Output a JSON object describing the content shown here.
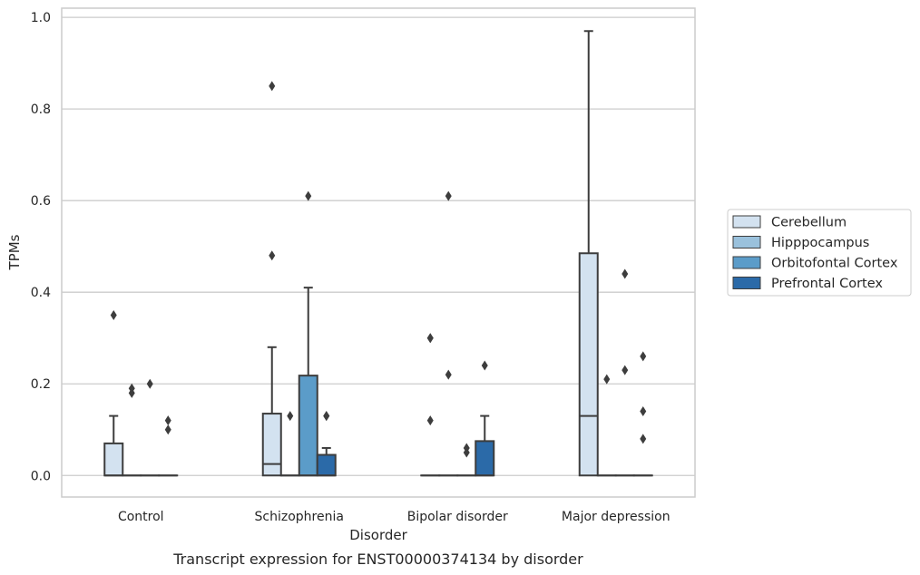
{
  "caption": "Transcript expression for ENST00000374134 by disorder",
  "chart_data": {
    "type": "box",
    "xlabel": "Disorder",
    "ylabel": "TPMs",
    "ylim": [
      -0.047,
      1.02
    ],
    "yticks": [
      "0.0",
      "0.2",
      "0.4",
      "0.6",
      "0.8",
      "1.0"
    ],
    "grid": true,
    "legend_position": "right",
    "categories": [
      "Control",
      "Schizophrenia",
      "Bipolar disorder",
      "Major depression"
    ],
    "series": [
      {
        "name": "Cerebellum",
        "color": "#d3e2f0",
        "boxes": [
          {
            "q1": 0,
            "median": 0,
            "q3": 0.07,
            "whisker_low": 0,
            "whisker_high": 0.13,
            "outliers": [
              0.35
            ]
          },
          {
            "q1": 0,
            "median": 0.025,
            "q3": 0.135,
            "whisker_low": 0,
            "whisker_high": 0.28,
            "outliers": [
              0.48,
              0.85
            ]
          },
          {
            "q1": 0,
            "median": 0,
            "q3": 0,
            "whisker_low": 0,
            "whisker_high": 0,
            "outliers": [
              0.12,
              0.3,
              0.3
            ]
          },
          {
            "q1": 0,
            "median": 0.13,
            "q3": 0.485,
            "whisker_low": 0,
            "whisker_high": 0.97,
            "outliers": []
          }
        ]
      },
      {
        "name": "Hipppocampus",
        "color": "#9ac1dc",
        "boxes": [
          {
            "q1": 0,
            "median": 0,
            "q3": 0,
            "whisker_low": 0,
            "whisker_high": 0,
            "outliers": [
              0.18,
              0.19
            ]
          },
          {
            "q1": 0,
            "median": 0,
            "q3": 0,
            "whisker_low": 0,
            "whisker_high": 0,
            "outliers": [
              0.13
            ]
          },
          {
            "q1": 0,
            "median": 0,
            "q3": 0,
            "whisker_low": 0,
            "whisker_high": 0,
            "outliers": [
              0.22,
              0.61
            ]
          },
          {
            "q1": 0,
            "median": 0,
            "q3": 0,
            "whisker_low": 0,
            "whisker_high": 0,
            "outliers": [
              0.21
            ]
          }
        ]
      },
      {
        "name": "Orbitofontal Cortex",
        "color": "#5b9cc9",
        "boxes": [
          {
            "q1": 0,
            "median": 0,
            "q3": 0,
            "whisker_low": 0,
            "whisker_high": 0,
            "outliers": [
              0.2
            ]
          },
          {
            "q1": 0,
            "median": 0,
            "q3": 0.218,
            "whisker_low": 0,
            "whisker_high": 0.41,
            "outliers": [
              0.61
            ]
          },
          {
            "q1": 0,
            "median": 0,
            "q3": 0,
            "whisker_low": 0,
            "whisker_high": 0,
            "outliers": [
              0.05,
              0.06
            ]
          },
          {
            "q1": 0,
            "median": 0,
            "q3": 0,
            "whisker_low": 0,
            "whisker_high": 0,
            "outliers": [
              0.23,
              0.44
            ]
          }
        ]
      },
      {
        "name": "Prefrontal Cortex",
        "color": "#2b6aa8",
        "boxes": [
          {
            "q1": 0,
            "median": 0,
            "q3": 0,
            "whisker_low": 0,
            "whisker_high": 0,
            "outliers": [
              0.1,
              0.12
            ]
          },
          {
            "q1": 0,
            "median": 0,
            "q3": 0.045,
            "whisker_low": 0,
            "whisker_high": 0.06,
            "outliers": [
              0.13,
              0.13
            ]
          },
          {
            "q1": 0,
            "median": 0,
            "q3": 0.075,
            "whisker_low": 0,
            "whisker_high": 0.13,
            "outliers": [
              0.24
            ]
          },
          {
            "q1": 0,
            "median": 0,
            "q3": 0,
            "whisker_low": 0,
            "whisker_high": 0,
            "outliers": [
              0.08,
              0.14,
              0.26
            ]
          }
        ]
      }
    ]
  }
}
